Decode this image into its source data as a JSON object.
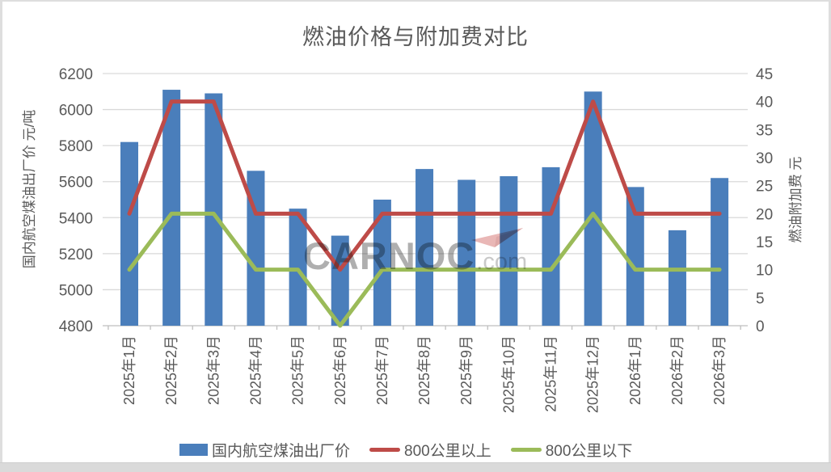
{
  "page": {
    "watermark": {
      "brand": "CARNOC",
      "suffix": ".com",
      "icon": "paper-plane-icon",
      "brand_color": "#7e7e7e",
      "suffix_color": "#a7a7a7",
      "plane_color": "#dc8b89"
    }
  },
  "chart_data": {
    "type": "combo-bar-line",
    "title": "燃油价格与附加费对比",
    "categories": [
      "2025年1月",
      "2025年2月",
      "2025年3月",
      "2025年4月",
      "2025年5月",
      "2025年6月",
      "2025年7月",
      "2025年8月",
      "2025年9月",
      "2025年10月",
      "2025年11月",
      "2025年12月",
      "2026年1月",
      "2026年2月",
      "2026年3月"
    ],
    "series": [
      {
        "name": "国内航空煤油出厂价",
        "type": "bar",
        "axis": "left",
        "color": "#4a7ebb",
        "values": [
          5820,
          6110,
          6090,
          5660,
          5450,
          5300,
          5500,
          5670,
          5610,
          5630,
          5680,
          6100,
          5570,
          5330,
          5620
        ]
      },
      {
        "name": "800公里以上",
        "type": "line",
        "axis": "right",
        "color": "#be4b48",
        "values": [
          20,
          40,
          40,
          20,
          20,
          10,
          20,
          20,
          20,
          20,
          20,
          40,
          20,
          20,
          20
        ]
      },
      {
        "name": "800公里以下",
        "type": "line",
        "axis": "right",
        "color": "#9bbb59",
        "values": [
          10,
          20,
          20,
          10,
          10,
          0,
          10,
          10,
          10,
          10,
          10,
          20,
          10,
          10,
          10
        ]
      }
    ],
    "left_axis": {
      "title": "国内航空煤油出厂价  元/吨",
      "min": 4800,
      "max": 6200,
      "step": 200,
      "tick_labels": [
        "4800",
        "5000",
        "5200",
        "5400",
        "5600",
        "5800",
        "6000",
        "6200"
      ]
    },
    "right_axis": {
      "title": "燃油附加费  元",
      "min": 0,
      "max": 45,
      "step": 5,
      "tick_labels": [
        "0",
        "5",
        "10",
        "15",
        "20",
        "25",
        "30",
        "35",
        "40",
        "45"
      ]
    },
    "grid": true,
    "legend_position": "bottom",
    "text_color": "#595959",
    "gridline_color": "#d9d9d9",
    "axisline_color": "#bfbfbf"
  }
}
